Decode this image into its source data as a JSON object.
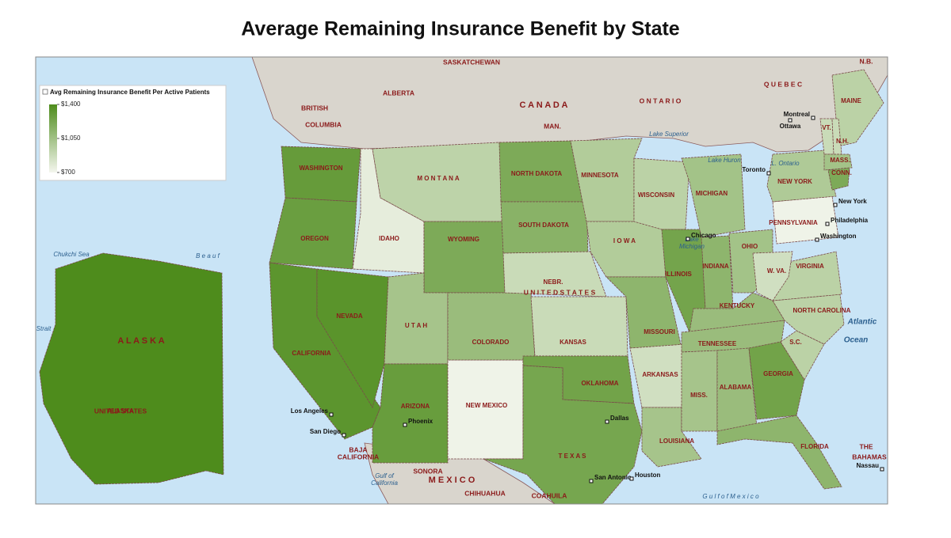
{
  "title": "Average Remaining Insurance Benefit by State",
  "legend": {
    "title": "Avg Remaining Insurance Benefit Per Active Patients",
    "ticks": [
      {
        "value": 1400,
        "label": "$1,400"
      },
      {
        "value": 1050,
        "label": "$1,050"
      },
      {
        "value": 700,
        "label": "$700"
      }
    ],
    "low_color": "#f4f6ee",
    "high_color": "#4e8c1c"
  },
  "states": [
    {
      "name": "ALASKA",
      "value": 1400
    },
    {
      "name": "WASHINGTON",
      "value": 1300
    },
    {
      "name": "OREGON",
      "value": 1280
    },
    {
      "name": "CALIFORNIA",
      "value": 1340
    },
    {
      "name": "NEVADA",
      "value": 1350
    },
    {
      "name": "IDAHO",
      "value": 760
    },
    {
      "name": "M O N T A N A",
      "value": 930
    },
    {
      "name": "WYOMING",
      "value": 1200
    },
    {
      "name": "U T A H",
      "value": 1030
    },
    {
      "name": "ARIZONA",
      "value": 1290
    },
    {
      "name": "NEW MEXICO",
      "value": 720
    },
    {
      "name": "COLORADO",
      "value": 1080
    },
    {
      "name": "NORTH DAKOTA",
      "value": 1200
    },
    {
      "name": "SOUTH DAKOTA",
      "value": 1150
    },
    {
      "name": "NEBR.",
      "value": 880
    },
    {
      "name": "KANSAS",
      "value": 880
    },
    {
      "name": "OKLAHOMA",
      "value": 1250
    },
    {
      "name": "T E X A S",
      "value": 1230
    },
    {
      "name": "MINNESOTA",
      "value": 980
    },
    {
      "name": "I O W A",
      "value": 980
    },
    {
      "name": "MISSOURI",
      "value": 1130
    },
    {
      "name": "ARKANSAS",
      "value": 850
    },
    {
      "name": "LOUISIANA",
      "value": 1030
    },
    {
      "name": "WISCONSIN",
      "value": 940
    },
    {
      "name": "ILLINOIS",
      "value": 1240
    },
    {
      "name": "MICHIGAN",
      "value": 1040
    },
    {
      "name": "INDIANA",
      "value": 1130
    },
    {
      "name": "OHIO",
      "value": 1040
    },
    {
      "name": "KENTUCKY",
      "value": 1080
    },
    {
      "name": "TENNESSEE",
      "value": 1080
    },
    {
      "name": "MISS.",
      "value": 1030
    },
    {
      "name": "ALABAMA",
      "value": 1080
    },
    {
      "name": "GEORGIA",
      "value": 1250
    },
    {
      "name": "FLORIDA",
      "value": 1130
    },
    {
      "name": "S.C.",
      "value": 940
    },
    {
      "name": "NORTH CAROLINA",
      "value": 940
    },
    {
      "name": "VIRGINIA",
      "value": 940
    },
    {
      "name": "W. VA.",
      "value": 850
    },
    {
      "name": "PENNSYLVANIA",
      "value": 720
    },
    {
      "name": "NEW YORK",
      "value": 990
    },
    {
      "name": "MAINE",
      "value": 940
    },
    {
      "name": "VT.",
      "value": 880
    },
    {
      "name": "N.H.",
      "value": 880
    },
    {
      "name": "MASS.",
      "value": 1040
    },
    {
      "name": "CONN.",
      "value": 1200
    }
  ],
  "regions": [
    "SASKATCHEWAN",
    "ALBERTA",
    "BRITISH",
    "COLUMBIA",
    "C A N A D A",
    "MAN.",
    "O N T A R I O",
    "Q U E B E C",
    "N.B.",
    "U N I T E D   S T A T E S",
    "UNITED STATES",
    "A L A S K A",
    "M E X I C O",
    "SONORA",
    "CHIHUAHUA",
    "COAHUILA",
    "BAJA",
    "CALIFORNIA",
    "THE",
    "BAHAMAS"
  ],
  "waters": [
    "Chukchi Sea",
    "B e a u f",
    "Strait",
    "Lake Superior",
    "Lake Huron",
    "L. Ontario",
    "Lake",
    "Michigan",
    "Atlantic",
    "Ocean",
    "G u l f   o f   M e x i c o",
    "Gulf of",
    "California"
  ],
  "cities": [
    "Montreal",
    "Ottawa",
    "Toronto",
    "New York",
    "Philadelphia",
    "Washington",
    "Chicago",
    "Los Angeles",
    "San Diego",
    "Phoenix",
    "Dallas",
    "San Antonio",
    "Houston",
    "Nassau"
  ]
}
